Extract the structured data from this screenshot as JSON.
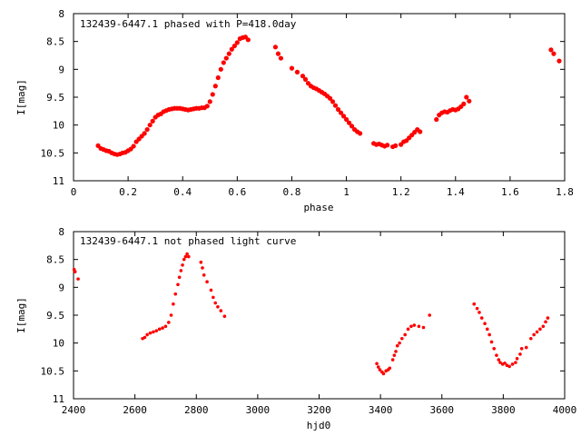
{
  "colors": {
    "marker": "#ff0000",
    "axis": "#000000",
    "background": "#ffffff"
  },
  "chart_data": [
    {
      "type": "scatter",
      "title": "132439-6447.1 phased with P=418.0day",
      "xlabel": "phase",
      "ylabel": "I[mag]",
      "xlim": [
        0,
        1.8
      ],
      "ylim": [
        11,
        8
      ],
      "y_inverted": true,
      "grid": false,
      "legend": "none",
      "xticks": [
        "0",
        "0.2",
        "0.4",
        "0.6",
        "0.8",
        "1",
        "1.2",
        "1.4",
        "1.6",
        "1.8"
      ],
      "yticks": [
        "8",
        "8.5",
        "9",
        "9.5",
        "10",
        "10.5",
        "11"
      ],
      "series": [
        {
          "points": [
            [
              0.09,
              10.37
            ],
            [
              0.1,
              10.42
            ],
            [
              0.11,
              10.44
            ],
            [
              0.12,
              10.46
            ],
            [
              0.13,
              10.47
            ],
            [
              0.14,
              10.5
            ],
            [
              0.15,
              10.52
            ],
            [
              0.16,
              10.53
            ],
            [
              0.17,
              10.52
            ],
            [
              0.18,
              10.5
            ],
            [
              0.19,
              10.49
            ],
            [
              0.2,
              10.46
            ],
            [
              0.21,
              10.43
            ],
            [
              0.22,
              10.38
            ],
            [
              0.23,
              10.3
            ],
            [
              0.24,
              10.25
            ],
            [
              0.25,
              10.2
            ],
            [
              0.26,
              10.15
            ],
            [
              0.27,
              10.08
            ],
            [
              0.28,
              10.0
            ],
            [
              0.29,
              9.93
            ],
            [
              0.3,
              9.86
            ],
            [
              0.31,
              9.82
            ],
            [
              0.32,
              9.8
            ],
            [
              0.33,
              9.76
            ],
            [
              0.34,
              9.74
            ],
            [
              0.35,
              9.72
            ],
            [
              0.36,
              9.71
            ],
            [
              0.37,
              9.7
            ],
            [
              0.38,
              9.7
            ],
            [
              0.39,
              9.7
            ],
            [
              0.4,
              9.71
            ],
            [
              0.41,
              9.72
            ],
            [
              0.42,
              9.73
            ],
            [
              0.43,
              9.72
            ],
            [
              0.44,
              9.71
            ],
            [
              0.45,
              9.7
            ],
            [
              0.46,
              9.7
            ],
            [
              0.47,
              9.69
            ],
            [
              0.48,
              9.69
            ],
            [
              0.49,
              9.66
            ],
            [
              0.5,
              9.58
            ],
            [
              0.51,
              9.45
            ],
            [
              0.52,
              9.3
            ],
            [
              0.53,
              9.15
            ],
            [
              0.54,
              9.0
            ],
            [
              0.55,
              8.88
            ],
            [
              0.56,
              8.8
            ],
            [
              0.57,
              8.72
            ],
            [
              0.58,
              8.64
            ],
            [
              0.59,
              8.58
            ],
            [
              0.6,
              8.52
            ],
            [
              0.61,
              8.45
            ],
            [
              0.62,
              8.43
            ],
            [
              0.63,
              8.42
            ],
            [
              0.64,
              8.47
            ],
            [
              0.74,
              8.6
            ],
            [
              0.75,
              8.72
            ],
            [
              0.76,
              8.8
            ],
            [
              0.8,
              8.98
            ],
            [
              0.82,
              9.05
            ],
            [
              0.84,
              9.12
            ],
            [
              0.85,
              9.18
            ],
            [
              0.86,
              9.25
            ],
            [
              0.87,
              9.3
            ],
            [
              0.88,
              9.33
            ],
            [
              0.89,
              9.35
            ],
            [
              0.9,
              9.38
            ],
            [
              0.91,
              9.41
            ],
            [
              0.92,
              9.44
            ],
            [
              0.93,
              9.48
            ],
            [
              0.94,
              9.52
            ],
            [
              0.95,
              9.58
            ],
            [
              0.96,
              9.65
            ],
            [
              0.97,
              9.72
            ],
            [
              0.98,
              9.78
            ],
            [
              0.99,
              9.84
            ],
            [
              1.0,
              9.9
            ],
            [
              1.01,
              9.96
            ],
            [
              1.02,
              10.02
            ],
            [
              1.03,
              10.08
            ],
            [
              1.04,
              10.12
            ],
            [
              1.05,
              10.15
            ],
            [
              1.1,
              10.33
            ],
            [
              1.11,
              10.35
            ],
            [
              1.12,
              10.34
            ],
            [
              1.13,
              10.36
            ],
            [
              1.14,
              10.38
            ],
            [
              1.15,
              10.36
            ],
            [
              1.17,
              10.39
            ],
            [
              1.18,
              10.37
            ],
            [
              1.2,
              10.35
            ],
            [
              1.21,
              10.3
            ],
            [
              1.22,
              10.28
            ],
            [
              1.23,
              10.23
            ],
            [
              1.24,
              10.18
            ],
            [
              1.25,
              10.13
            ],
            [
              1.26,
              10.08
            ],
            [
              1.27,
              10.12
            ],
            [
              1.33,
              9.9
            ],
            [
              1.34,
              9.82
            ],
            [
              1.35,
              9.78
            ],
            [
              1.36,
              9.76
            ],
            [
              1.37,
              9.77
            ],
            [
              1.38,
              9.74
            ],
            [
              1.39,
              9.72
            ],
            [
              1.4,
              9.73
            ],
            [
              1.41,
              9.71
            ],
            [
              1.42,
              9.67
            ],
            [
              1.43,
              9.62
            ],
            [
              1.44,
              9.5
            ],
            [
              1.45,
              9.57
            ],
            [
              1.75,
              8.65
            ],
            [
              1.76,
              8.72
            ],
            [
              1.78,
              8.85
            ]
          ]
        }
      ]
    },
    {
      "type": "scatter",
      "title": "132439-6447.1 not phased light curve",
      "xlabel": "hjd0",
      "ylabel": "I[mag]",
      "xlim": [
        2400,
        4000
      ],
      "ylim": [
        11,
        8
      ],
      "y_inverted": true,
      "grid": false,
      "legend": "none",
      "xticks": [
        "2400",
        "2600",
        "2800",
        "3000",
        "3200",
        "3400",
        "3600",
        "3800",
        "4000"
      ],
      "yticks": [
        "8",
        "8.5",
        "9",
        "9.5",
        "10",
        "10.5",
        "11"
      ],
      "series": [
        {
          "points": [
            [
              2402,
              8.68
            ],
            [
              2405,
              8.72
            ],
            [
              2415,
              8.85
            ],
            [
              2625,
              9.92
            ],
            [
              2632,
              9.9
            ],
            [
              2640,
              9.85
            ],
            [
              2650,
              9.82
            ],
            [
              2660,
              9.8
            ],
            [
              2670,
              9.78
            ],
            [
              2680,
              9.75
            ],
            [
              2690,
              9.73
            ],
            [
              2700,
              9.7
            ],
            [
              2710,
              9.63
            ],
            [
              2718,
              9.5
            ],
            [
              2725,
              9.3
            ],
            [
              2732,
              9.12
            ],
            [
              2740,
              8.95
            ],
            [
              2745,
              8.82
            ],
            [
              2750,
              8.7
            ],
            [
              2755,
              8.6
            ],
            [
              2760,
              8.5
            ],
            [
              2765,
              8.45
            ],
            [
              2770,
              8.4
            ],
            [
              2775,
              8.45
            ],
            [
              2815,
              8.55
            ],
            [
              2820,
              8.65
            ],
            [
              2825,
              8.78
            ],
            [
              2835,
              8.9
            ],
            [
              2848,
              9.05
            ],
            [
              2855,
              9.18
            ],
            [
              2862,
              9.28
            ],
            [
              2870,
              9.35
            ],
            [
              2880,
              9.42
            ],
            [
              2892,
              9.52
            ],
            [
              3388,
              10.37
            ],
            [
              3393,
              10.43
            ],
            [
              3398,
              10.48
            ],
            [
              3405,
              10.52
            ],
            [
              3410,
              10.55
            ],
            [
              3418,
              10.5
            ],
            [
              3425,
              10.48
            ],
            [
              3430,
              10.45
            ],
            [
              3440,
              10.3
            ],
            [
              3445,
              10.22
            ],
            [
              3450,
              10.15
            ],
            [
              3455,
              10.05
            ],
            [
              3462,
              10.0
            ],
            [
              3470,
              9.92
            ],
            [
              3480,
              9.85
            ],
            [
              3490,
              9.75
            ],
            [
              3500,
              9.7
            ],
            [
              3510,
              9.68
            ],
            [
              3525,
              9.7
            ],
            [
              3540,
              9.72
            ],
            [
              3560,
              9.5
            ],
            [
              3705,
              9.3
            ],
            [
              3715,
              9.38
            ],
            [
              3722,
              9.45
            ],
            [
              3730,
              9.55
            ],
            [
              3740,
              9.65
            ],
            [
              3748,
              9.75
            ],
            [
              3755,
              9.85
            ],
            [
              3762,
              9.98
            ],
            [
              3770,
              10.1
            ],
            [
              3778,
              10.22
            ],
            [
              3785,
              10.3
            ],
            [
              3790,
              10.35
            ],
            [
              3798,
              10.38
            ],
            [
              3805,
              10.36
            ],
            [
              3812,
              10.4
            ],
            [
              3820,
              10.42
            ],
            [
              3830,
              10.38
            ],
            [
              3840,
              10.35
            ],
            [
              3845,
              10.28
            ],
            [
              3855,
              10.2
            ],
            [
              3860,
              10.1
            ],
            [
              3875,
              10.08
            ],
            [
              3890,
              9.92
            ],
            [
              3900,
              9.85
            ],
            [
              3910,
              9.8
            ],
            [
              3920,
              9.75
            ],
            [
              3930,
              9.7
            ],
            [
              3938,
              9.62
            ],
            [
              3945,
              9.55
            ]
          ]
        }
      ]
    }
  ]
}
